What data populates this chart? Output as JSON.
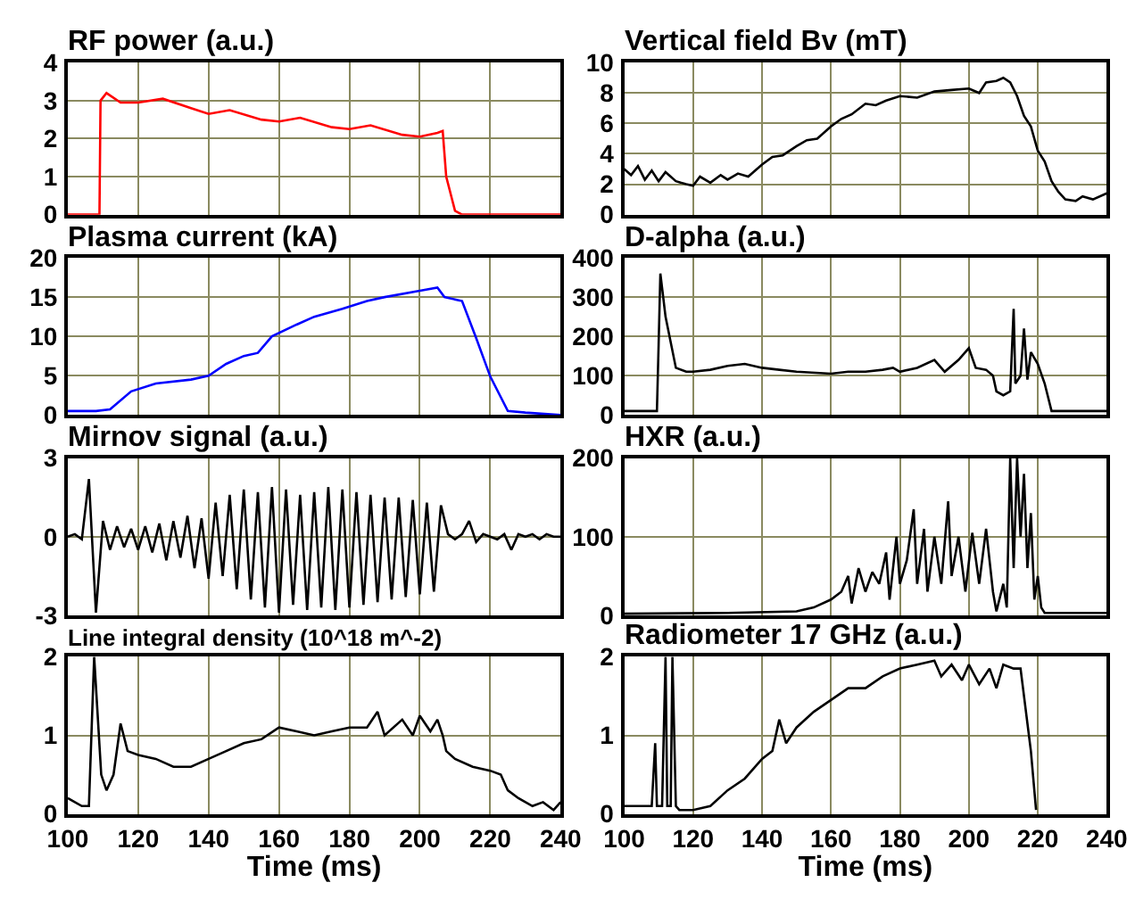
{
  "chart_data": [
    {
      "type": "line",
      "title": "RF power (a.u.)",
      "color": "#ff0000",
      "marker": "none",
      "grid": true,
      "tick_labels": "y",
      "xlim": [
        100,
        240
      ],
      "xticks": [
        100,
        120,
        140,
        160,
        180,
        200,
        220,
        240
      ],
      "ylim": [
        0,
        4
      ],
      "yticks": [
        0,
        1,
        2,
        3,
        4
      ],
      "x": [
        100,
        109,
        109.3,
        111,
        115,
        120,
        127,
        135,
        140,
        146,
        155,
        160,
        166,
        175,
        180,
        186,
        195,
        200,
        205,
        206.5,
        207.5,
        210,
        212,
        240
      ],
      "values": [
        0,
        0,
        3.0,
        3.2,
        2.95,
        2.95,
        3.05,
        2.8,
        2.65,
        2.75,
        2.5,
        2.45,
        2.55,
        2.3,
        2.25,
        2.35,
        2.1,
        2.05,
        2.15,
        2.2,
        1.0,
        0.1,
        0,
        0
      ]
    },
    {
      "type": "line",
      "title": "Vertical field Bv (mT)",
      "color": "#000000",
      "marker": "none",
      "grid": true,
      "tick_labels": "y",
      "xlim": [
        100,
        240
      ],
      "xticks": [
        100,
        120,
        140,
        160,
        180,
        200,
        220,
        240
      ],
      "ylim": [
        0,
        10
      ],
      "yticks": [
        0,
        2,
        4,
        6,
        8,
        10
      ],
      "x": [
        100,
        102,
        104,
        106,
        108,
        110,
        112,
        115,
        118,
        120,
        122,
        125,
        128,
        130,
        133,
        136,
        140,
        143,
        146,
        150,
        153,
        156,
        160,
        163,
        166,
        170,
        173,
        176,
        180,
        185,
        190,
        195,
        200,
        203,
        205,
        208,
        210,
        212,
        214,
        216,
        218,
        220,
        222,
        224,
        226,
        228,
        231,
        233,
        236,
        240
      ],
      "values": [
        3.0,
        2.6,
        3.2,
        2.3,
        2.9,
        2.2,
        2.8,
        2.2,
        2.0,
        1.9,
        2.5,
        2.1,
        2.6,
        2.3,
        2.7,
        2.5,
        3.3,
        3.8,
        3.9,
        4.5,
        4.9,
        5.0,
        5.8,
        6.3,
        6.6,
        7.3,
        7.2,
        7.5,
        7.8,
        7.7,
        8.1,
        8.2,
        8.3,
        8.0,
        8.7,
        8.8,
        9.0,
        8.7,
        7.8,
        6.5,
        5.8,
        4.2,
        3.5,
        2.2,
        1.5,
        1.0,
        0.9,
        1.2,
        1.0,
        1.4
      ]
    },
    {
      "type": "line",
      "title": "Plasma current (kA)",
      "color": "#0000ff",
      "marker": "none",
      "grid": true,
      "tick_labels": "y",
      "xlim": [
        100,
        240
      ],
      "xticks": [
        100,
        120,
        140,
        160,
        180,
        200,
        220,
        240
      ],
      "ylim": [
        0,
        20
      ],
      "yticks": [
        0,
        5,
        10,
        15,
        20
      ],
      "x": [
        100,
        108,
        112,
        118,
        125,
        135,
        140,
        145,
        150,
        154,
        158,
        165,
        170,
        178,
        185,
        190,
        200,
        205,
        207,
        212,
        216,
        220,
        225,
        230,
        240
      ],
      "values": [
        0.5,
        0.5,
        0.7,
        3.0,
        4.0,
        4.5,
        5.0,
        6.5,
        7.5,
        7.9,
        10,
        11.5,
        12.5,
        13.5,
        14.5,
        15,
        15.8,
        16.2,
        15,
        14.5,
        9.8,
        4.9,
        0.5,
        0.3,
        0
      ]
    },
    {
      "type": "line",
      "title": "D-alpha (a.u.)",
      "color": "#000000",
      "marker": "none",
      "grid": true,
      "tick_labels": "y",
      "xlim": [
        100,
        240
      ],
      "xticks": [
        100,
        120,
        140,
        160,
        180,
        200,
        220,
        240
      ],
      "ylim": [
        0,
        400
      ],
      "yticks": [
        0,
        100,
        200,
        300,
        400
      ],
      "x": [
        100,
        109.5,
        110,
        110.5,
        112,
        115,
        118,
        120,
        125,
        130,
        135,
        140,
        145,
        150,
        160,
        165,
        170,
        175,
        178,
        180,
        185,
        190,
        193,
        197,
        200,
        202,
        205,
        207,
        208,
        210,
        212,
        213,
        213.5,
        215,
        216,
        217,
        218,
        220,
        222,
        224,
        240
      ],
      "values": [
        10,
        10,
        180,
        360,
        250,
        120,
        110,
        110,
        115,
        125,
        130,
        120,
        115,
        110,
        105,
        110,
        110,
        115,
        120,
        110,
        120,
        140,
        110,
        140,
        170,
        120,
        115,
        100,
        60,
        50,
        60,
        270,
        80,
        100,
        220,
        90,
        160,
        130,
        80,
        10,
        10
      ]
    },
    {
      "type": "line",
      "title": "Mirnov signal (a.u.)",
      "color": "#000000",
      "marker": "none",
      "grid": true,
      "tick_labels": "y",
      "xlim": [
        100,
        240
      ],
      "xticks": [
        100,
        120,
        140,
        160,
        180,
        200,
        220,
        240
      ],
      "ylim": [
        -3,
        3
      ],
      "yticks": [
        -3,
        0,
        3
      ],
      "x": [
        100,
        102,
        104,
        106,
        108,
        110,
        112,
        114,
        116,
        118,
        120,
        122,
        124,
        126,
        128,
        130,
        132,
        134,
        136,
        138,
        140,
        142,
        144,
        146,
        148,
        150,
        152,
        154,
        156,
        158,
        160,
        162,
        164,
        166,
        168,
        170,
        172,
        174,
        176,
        178,
        180,
        182,
        184,
        186,
        188,
        190,
        192,
        194,
        196,
        198,
        200,
        202,
        204,
        206,
        208,
        210,
        212,
        214,
        216,
        218,
        220,
        222,
        224,
        226,
        228,
        230,
        232,
        234,
        236,
        238,
        240
      ],
      "values": [
        0,
        0.1,
        -0.1,
        2.2,
        -2.9,
        0.6,
        -0.5,
        0.4,
        -0.4,
        0.3,
        -0.5,
        0.4,
        -0.6,
        0.5,
        -0.9,
        0.6,
        -0.8,
        0.8,
        -1.2,
        0.7,
        -1.6,
        1.3,
        -1.5,
        1.6,
        -2.0,
        1.8,
        -2.4,
        1.7,
        -2.7,
        1.9,
        -2.9,
        1.8,
        -2.6,
        1.6,
        -2.8,
        1.7,
        -2.7,
        1.9,
        -2.8,
        1.8,
        -2.7,
        1.7,
        -2.6,
        1.6,
        -2.5,
        1.5,
        -2.4,
        1.5,
        -2.3,
        1.4,
        -2.2,
        1.3,
        -2.1,
        1.2,
        0.1,
        -0.1,
        0.1,
        0.6,
        -0.2,
        0.1,
        0,
        -0.1,
        0.1,
        -0.5,
        0.1,
        0,
        0.1,
        -0.1,
        0.1,
        0,
        0
      ]
    },
    {
      "type": "line",
      "title": "HXR (a.u.)",
      "color": "#000000",
      "marker": "none",
      "grid": true,
      "tick_labels": "y",
      "xlim": [
        100,
        240
      ],
      "xticks": [
        100,
        120,
        140,
        160,
        180,
        200,
        220,
        240
      ],
      "ylim": [
        0,
        200
      ],
      "yticks": [
        0,
        100,
        200
      ],
      "x": [
        100,
        130,
        150,
        155,
        160,
        163,
        165,
        166,
        168,
        170,
        172,
        174,
        176,
        177,
        179,
        180,
        182,
        184,
        185,
        187,
        188,
        190,
        192,
        194,
        195,
        197,
        199,
        201,
        203,
        205,
        207,
        208,
        210,
        211,
        212,
        213,
        214,
        215,
        216,
        217,
        218,
        219,
        220,
        221,
        222,
        240
      ],
      "values": [
        2,
        3,
        5,
        10,
        20,
        30,
        50,
        15,
        60,
        30,
        55,
        40,
        80,
        20,
        100,
        40,
        70,
        135,
        40,
        110,
        30,
        100,
        40,
        145,
        50,
        100,
        30,
        105,
        40,
        110,
        30,
        5,
        40,
        10,
        200,
        60,
        200,
        100,
        180,
        60,
        130,
        20,
        50,
        10,
        3,
        3
      ]
    },
    {
      "type": "line",
      "title": "Line integral density (10^18 m^-2)",
      "xlabel": "Time (ms)",
      "color": "#000000",
      "marker": "none",
      "grid": true,
      "xlim": [
        100,
        240
      ],
      "xticks": [
        100,
        120,
        140,
        160,
        180,
        200,
        220,
        240
      ],
      "ylim": [
        0,
        2
      ],
      "yticks": [
        0,
        1,
        2
      ],
      "x": [
        100,
        102,
        104,
        106,
        107.5,
        109.5,
        111,
        113,
        115,
        117,
        120,
        125,
        130,
        135,
        140,
        145,
        150,
        155,
        160,
        165,
        170,
        175,
        180,
        185,
        188,
        190,
        195,
        198,
        200,
        203,
        205,
        206.5,
        207.5,
        210,
        215,
        220,
        223,
        225,
        228,
        232,
        235,
        238,
        240
      ],
      "values": [
        0.2,
        0.15,
        0.1,
        0.1,
        2.0,
        0.5,
        0.3,
        0.5,
        1.15,
        0.8,
        0.75,
        0.7,
        0.6,
        0.6,
        0.7,
        0.8,
        0.9,
        0.95,
        1.1,
        1.05,
        1.0,
        1.05,
        1.1,
        1.1,
        1.3,
        1.0,
        1.2,
        1.0,
        1.25,
        1.05,
        1.2,
        1.0,
        0.8,
        0.7,
        0.6,
        0.55,
        0.5,
        0.3,
        0.2,
        0.1,
        0.15,
        0.05,
        0.15
      ]
    },
    {
      "type": "line",
      "title": "Radiometer 17 GHz (a.u.)",
      "xlabel": "Time (ms)",
      "color": "#000000",
      "marker": "none",
      "grid": true,
      "xlim": [
        100,
        240
      ],
      "xticks": [
        100,
        120,
        140,
        160,
        180,
        200,
        220,
        240
      ],
      "ylim": [
        0,
        2
      ],
      "yticks": [
        0,
        1,
        2
      ],
      "x": [
        100,
        108,
        109,
        109.5,
        111,
        112,
        112.5,
        113.5,
        114,
        115,
        116,
        120,
        125,
        130,
        135,
        140,
        143,
        145,
        147,
        150,
        155,
        160,
        165,
        170,
        175,
        180,
        185,
        190,
        192,
        195,
        198,
        200,
        203,
        206,
        208,
        210,
        213,
        215,
        218,
        219.5
      ],
      "values": [
        0.1,
        0.1,
        0.9,
        0.1,
        0.1,
        2.0,
        0.1,
        0.1,
        2.0,
        0.1,
        0.05,
        0.05,
        0.1,
        0.3,
        0.45,
        0.7,
        0.8,
        1.2,
        0.9,
        1.1,
        1.3,
        1.45,
        1.6,
        1.6,
        1.75,
        1.85,
        1.9,
        1.95,
        1.75,
        1.9,
        1.7,
        1.9,
        1.65,
        1.85,
        1.6,
        1.9,
        1.85,
        1.85,
        0.8,
        0.05
      ]
    }
  ]
}
